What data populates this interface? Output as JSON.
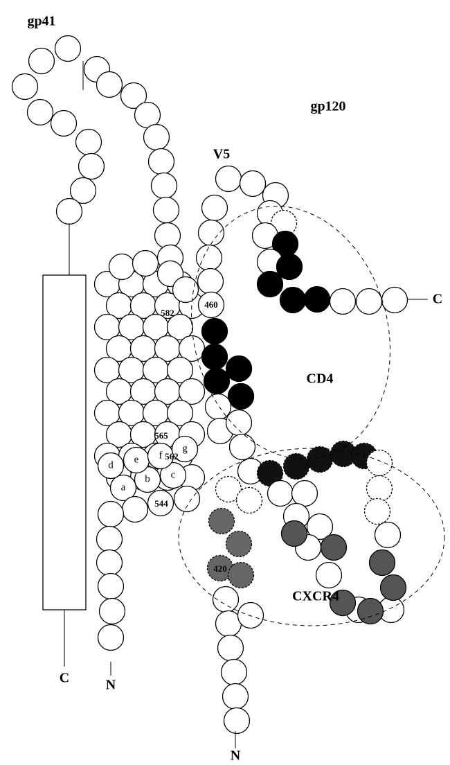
{
  "titles": {
    "gp41": "gp41",
    "gp120": "gp120"
  },
  "regions": {
    "v5": "V5",
    "cd4": "CD4",
    "cxcr4": "CXCR4"
  },
  "termini": {
    "gp41_c": "C",
    "gp41_n": "N",
    "gp120_c": "C",
    "gp120_n": "N"
  },
  "residues": [
    "582",
    "565",
    "562",
    "544",
    "460",
    "420"
  ],
  "heptad": [
    "a",
    "b",
    "c",
    "d",
    "e",
    "f",
    "g"
  ]
}
